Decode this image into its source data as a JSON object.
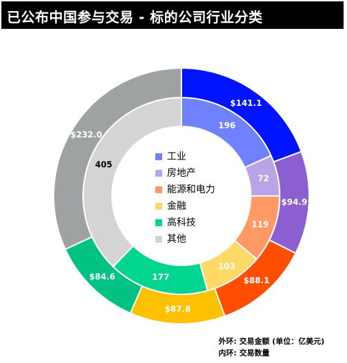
{
  "title": "已公布中国参与交易 - 标的公司行业分类",
  "colors": {
    "outer": [
      "#0014ff",
      "#8b5fd0",
      "#ff4e00",
      "#ffc000",
      "#00c383",
      "#9fa2a2"
    ],
    "inner": [
      "#6f81ff",
      "#baa4e8",
      "#ff9a66",
      "#ffd966",
      "#00d68f",
      "#d4d4d4"
    ]
  },
  "chart_data": {
    "type": "donut",
    "categories": [
      "工业",
      "房地产",
      "能源和电力",
      "金融",
      "高科技",
      "其他"
    ],
    "outer": {
      "values": [
        141.1,
        94.9,
        88.1,
        87.8,
        84.6,
        232.0
      ],
      "labels": [
        "$141.1",
        "$94.9",
        "$88.1",
        "$87.8",
        "$84.6",
        "$232.0"
      ]
    },
    "inner": {
      "values": [
        196,
        72,
        119,
        103,
        177,
        405
      ],
      "labels": [
        "196",
        "72",
        "119",
        "103",
        "177",
        "405"
      ]
    }
  },
  "notes": {
    "outer": "外环: 交易金额 (单位：亿美元)",
    "inner": "内环: 交易数量"
  }
}
